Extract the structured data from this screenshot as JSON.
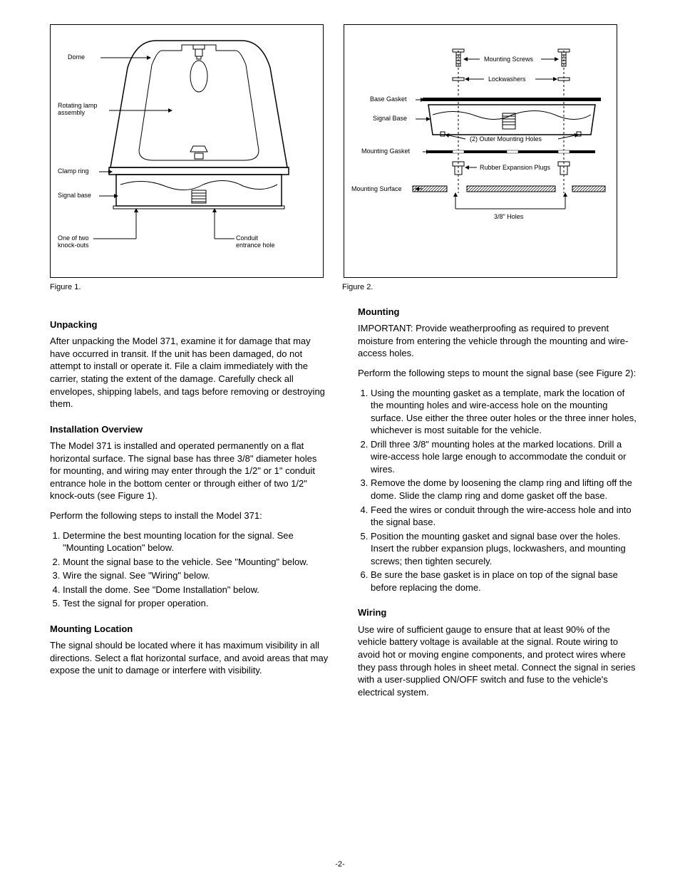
{
  "fig1": {
    "caption": "Figure 1.",
    "labels": {
      "dome": "Dome",
      "rotating": "Rotating lamp\nassembly",
      "clamp": "Clamp ring",
      "base": "Signal base",
      "knockout": "One of two\nknock-outs",
      "conduit": "Conduit\nentrance hole"
    }
  },
  "fig2": {
    "caption": "Figure 2.",
    "labels": {
      "screws": "Mounting Screws",
      "lock": "Lockwashers",
      "basegasket": "Base Gasket",
      "signalbase": "Signal Base",
      "mgasket": "Mounting Gasket",
      "outerholes": "(2) Outer Mounting Holes",
      "plugs": "Rubber Expansion Plugs",
      "surface": "Mounting Surface",
      "holes": "3/8\" Holes"
    }
  },
  "body": {
    "h1": "Unpacking",
    "p1": "After unpacking the Model 371, examine it for damage that may have occurred in transit. If the unit has been damaged, do not attempt to install or operate it. File a claim immediately with the carrier, stating the extent of the damage. Carefully check all envelopes, shipping labels, and tags before removing or destroying them.",
    "h2": "Installation Overview",
    "p2": "The Model 371 is installed and operated permanently on a flat horizontal surface. The signal base has three 3/8\" diameter holes for mounting, and wiring may enter through the 1/2\" or 1\" conduit entrance hole in the bottom center or through either of two 1/2\" knock-outs (see Figure 1).",
    "h3": "Perform the following steps to install the Model 371:",
    "steps": [
      "Determine the best mounting location for the signal. See \"Mounting Location\" below.",
      "Mount the signal base to the vehicle. See \"Mounting\" below.",
      "Wire the signal. See \"Wiring\" below.",
      "Install the dome. See \"Dome Installation\" below.",
      "Test the signal for proper operation."
    ],
    "h4": "Mounting Location",
    "p4": "The signal should be located where it has maximum visibility in all directions. Select a flat horizontal surface, and avoid areas that may expose the unit to damage or interfere with visibility.",
    "h5a": "Mounting",
    "p5a": "IMPORTANT: Provide weatherproofing as required to prevent moisture from entering the vehicle through the mounting and wire-access holes.",
    "p5b": "Perform the following steps to mount the signal base (see Figure 2):",
    "msteps": [
      "Using the mounting gasket as a template, mark the location of the mounting holes and wire-access hole on the mounting surface. Use either the three outer holes or the three inner holes, whichever is most suitable for the vehicle.",
      "Drill three 3/8\" mounting holes at the marked locations. Drill a wire-access hole large enough to accommodate the conduit or wires.",
      "Remove the dome by loosening the clamp ring and lifting off the dome. Slide the clamp ring and dome gasket off the base.",
      "Feed the wires or conduit through the wire-access hole and into the signal base.",
      "Position the mounting gasket and signal base over the holes. Insert the rubber expansion plugs, lockwashers, and mounting screws; then tighten securely.",
      "Be sure the base gasket is in place on top of the signal base before replacing the dome."
    ],
    "h6": "Wiring",
    "p6": "Use wire of sufficient gauge to ensure that at least 90% of the vehicle battery voltage is available at the signal. Route wiring to avoid hot or moving engine components, and protect wires where they pass through holes in sheet metal. Connect the signal in series with a user-supplied ON/OFF switch and fuse to the vehicle's electrical system."
  },
  "footer": "-2-",
  "style": {
    "stroke": "#000000",
    "fill_none": "none",
    "fill_black": "#000000",
    "fill_grey": "#c8c8c8",
    "fill_hatch": "#d0d0d0",
    "sw_thin": 1,
    "sw_med": 1.5,
    "sw_thick": 4,
    "arrow_size": 4
  }
}
